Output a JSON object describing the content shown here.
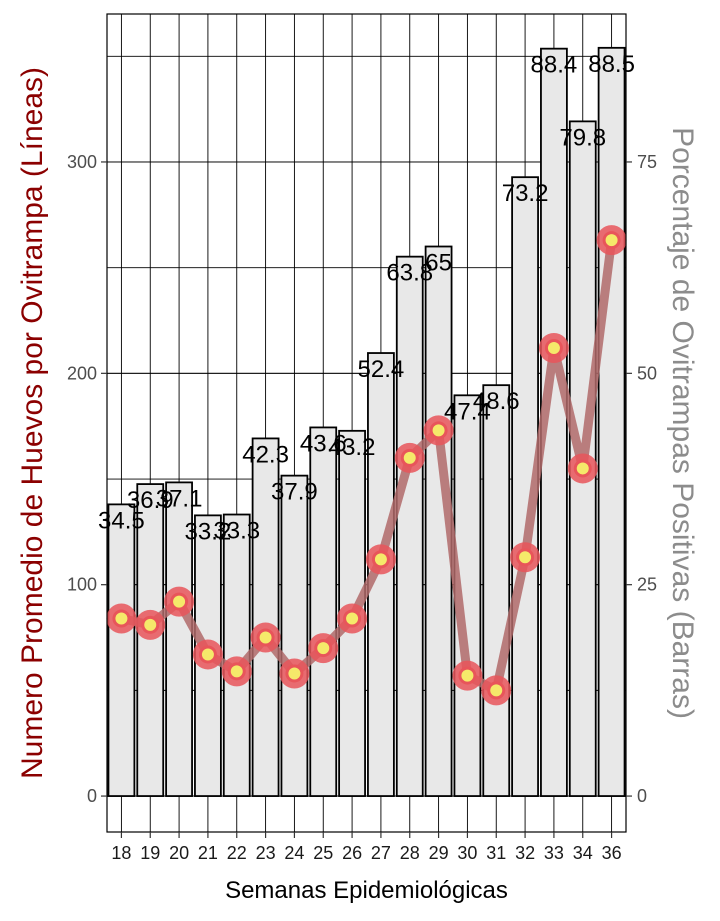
{
  "chart_data": {
    "type": "bar",
    "categories": [
      "18",
      "19",
      "20",
      "21",
      "22",
      "23",
      "24",
      "25",
      "26",
      "27",
      "28",
      "29",
      "30",
      "31",
      "32",
      "33",
      "34",
      "36"
    ],
    "series": [
      {
        "type": "bar",
        "axis": "right",
        "values": [
          34.5,
          36.9,
          37.1,
          33.2,
          33.3,
          42.3,
          37.9,
          43.6,
          43.2,
          52.4,
          63.8,
          65,
          47.4,
          48.6,
          73.2,
          88.4,
          79.8,
          88.5
        ],
        "labels": [
          "34.5",
          "36.9",
          "37.1",
          "33.2",
          "33.3",
          "42.3",
          "37.9",
          "43.6",
          "43.2",
          "52.4",
          "63.8",
          "65",
          "47.4",
          "48.6",
          "73.2",
          "88.4",
          "79.8",
          "88.5"
        ]
      },
      {
        "type": "line",
        "axis": "left",
        "values": [
          84,
          81,
          92,
          67,
          59,
          75,
          58,
          70,
          84,
          112,
          160,
          173,
          57,
          50,
          113,
          212,
          155,
          263
        ]
      }
    ],
    "xlabel": "Semanas Epidemiológicas",
    "ylabel": "Numero Promedio de Huevos por Ovitrampa (Líneas)",
    "ylabel_right": "Porcentaje de Ovitrampas Positivas (Barras)",
    "ylim": [
      -17,
      370
    ],
    "ylim_right": [
      -4.25,
      92.5
    ],
    "yticks": [
      0,
      100,
      200,
      300
    ],
    "yticks_right": [
      0,
      25,
      50,
      75
    ],
    "grid": true,
    "colors": {
      "bar_fill": "#e8e8e8",
      "bar_stroke": "#000000",
      "line": "#b06a6a",
      "marker_outer": "#e8555a",
      "marker_inner": "#f5e96a",
      "left_title": "#8b0000",
      "right_title": "#8c8c8c",
      "grid": "#000000"
    }
  }
}
